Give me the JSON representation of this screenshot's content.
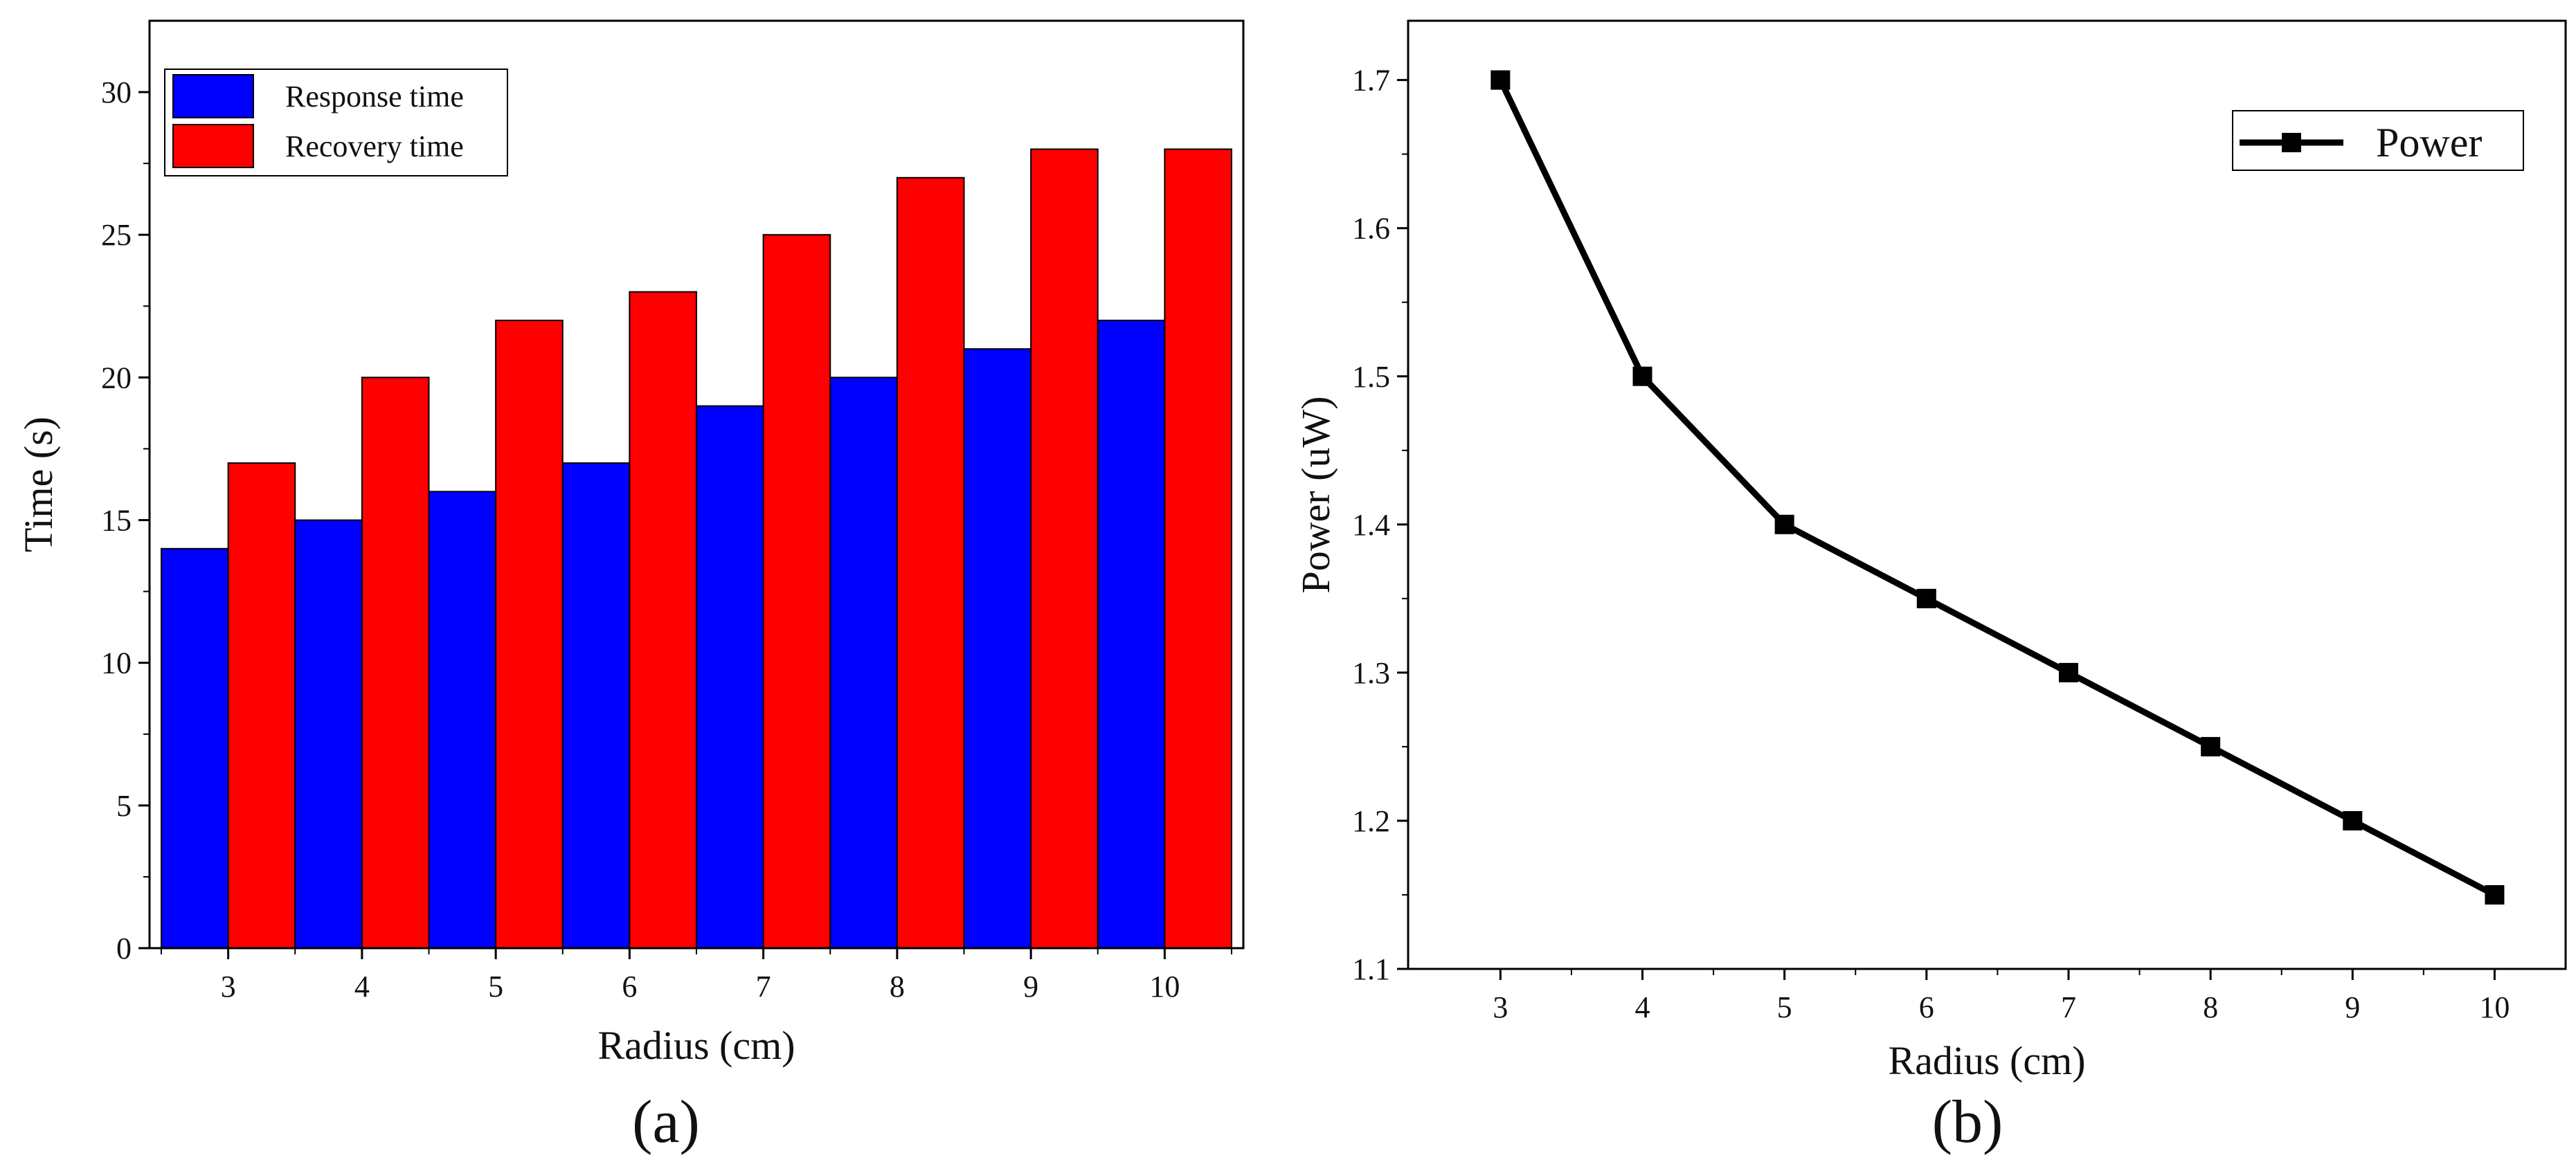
{
  "chart_data": [
    {
      "type": "bar",
      "panel_label": "(a)",
      "categories": [
        "3",
        "4",
        "5",
        "6",
        "7",
        "8",
        "9",
        "10"
      ],
      "series": [
        {
          "name": "Response time",
          "color": "#0000ff",
          "values": [
            14,
            15,
            16,
            17,
            19,
            20,
            21,
            22
          ]
        },
        {
          "name": "Recovery time",
          "color": "#ff0000",
          "values": [
            17,
            20,
            22,
            23,
            25,
            27,
            28,
            28
          ]
        }
      ],
      "xlabel": "Radius (cm)",
      "ylabel": "Time (s)",
      "ylim": [
        0,
        32.5
      ],
      "yticks": [
        0,
        5,
        10,
        15,
        20,
        25,
        30
      ],
      "legend_position": "top-left",
      "grid": false
    },
    {
      "type": "line",
      "panel_label": "(b)",
      "x": [
        3,
        4,
        5,
        6,
        7,
        8,
        9,
        10
      ],
      "series": [
        {
          "name": "Power",
          "color": "#000000",
          "marker": "square",
          "values": [
            1.7,
            1.5,
            1.4,
            1.35,
            1.3,
            1.25,
            1.2,
            1.15
          ]
        }
      ],
      "xlabel": "Radius (cm)",
      "ylabel": "Power (uW)",
      "xlim": [
        2.35,
        10.5
      ],
      "ylim": [
        1.1,
        1.74
      ],
      "xticks": [
        3,
        4,
        5,
        6,
        7,
        8,
        9,
        10
      ],
      "yticks": [
        1.1,
        1.2,
        1.3,
        1.4,
        1.5,
        1.6,
        1.7
      ],
      "ytick_labels": [
        "1.1",
        "1.2",
        "1.3",
        "1.4",
        "1.5",
        "1.6",
        "1.7"
      ],
      "legend_position": "top-right",
      "grid": false
    }
  ]
}
